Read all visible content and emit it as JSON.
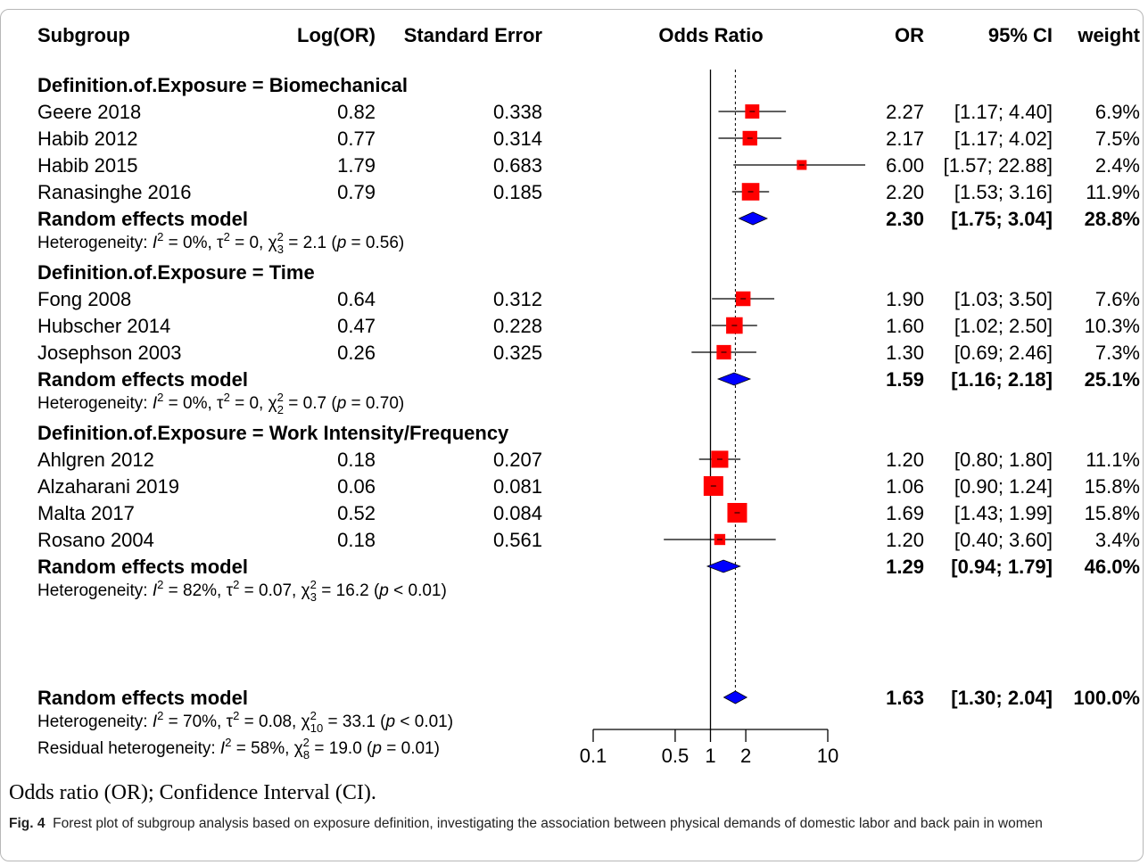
{
  "chart_data": {
    "type": "forest",
    "headers": {
      "subgroup": "Subgroup",
      "logor": "Log(OR)",
      "se": "Standard Error",
      "plot": "Odds Ratio",
      "or": "OR",
      "ci": "95% CI",
      "weight": "weight"
    },
    "axis": {
      "scale": "log",
      "ticks": [
        "0.1",
        "0.5",
        "1",
        "2",
        "10"
      ],
      "tick_values": [
        0.1,
        0.5,
        1,
        2,
        10
      ],
      "xlim": [
        0.1,
        10
      ],
      "null_value": 1,
      "overall_line": 1.63
    },
    "groups": [
      {
        "heading": "Definition.of.Exposure = Biomechanical",
        "studies": [
          {
            "name": "Geere 2018",
            "logor": "0.82",
            "se": "0.338",
            "or": 2.27,
            "lo": 1.17,
            "hi": 4.4,
            "or_text": "2.27",
            "ci_text": "[1.17;  4.40]",
            "weight_text": "6.9%",
            "weight": 6.9
          },
          {
            "name": "Habib 2012",
            "logor": "0.77",
            "se": "0.314",
            "or": 2.17,
            "lo": 1.17,
            "hi": 4.02,
            "or_text": "2.17",
            "ci_text": "[1.17;  4.02]",
            "weight_text": "7.5%",
            "weight": 7.5
          },
          {
            "name": "Habib 2015",
            "logor": "1.79",
            "se": "0.683",
            "or": 6.0,
            "lo": 1.57,
            "hi": 22.88,
            "or_text": "6.00",
            "ci_text": "[1.57; 22.88]",
            "weight_text": "2.4%",
            "weight": 2.4
          },
          {
            "name": "Ranasinghe 2016",
            "logor": "0.79",
            "se": "0.185",
            "or": 2.2,
            "lo": 1.53,
            "hi": 3.16,
            "or_text": "2.20",
            "ci_text": "[1.53;  3.16]",
            "weight_text": "11.9%",
            "weight": 11.9
          }
        ],
        "model": {
          "label": "Random effects model",
          "or": 2.3,
          "lo": 1.75,
          "hi": 3.04,
          "or_text": "2.30",
          "ci_text": "[1.75;  3.04]",
          "weight_text": "28.8%"
        },
        "heterogeneity": {
          "I2": "0%",
          "tau2": "0",
          "df": "3",
          "chi2": "2.1",
          "p": "= 0.56"
        }
      },
      {
        "heading": "Definition.of.Exposure = Time",
        "studies": [
          {
            "name": "Fong 2008",
            "logor": "0.64",
            "se": "0.312",
            "or": 1.9,
            "lo": 1.03,
            "hi": 3.5,
            "or_text": "1.90",
            "ci_text": "[1.03;  3.50]",
            "weight_text": "7.6%",
            "weight": 7.6
          },
          {
            "name": "Hubscher 2014",
            "logor": "0.47",
            "se": "0.228",
            "or": 1.6,
            "lo": 1.02,
            "hi": 2.5,
            "or_text": "1.60",
            "ci_text": "[1.02;  2.50]",
            "weight_text": "10.3%",
            "weight": 10.3
          },
          {
            "name": "Josephson 2003",
            "logor": "0.26",
            "se": "0.325",
            "or": 1.3,
            "lo": 0.69,
            "hi": 2.46,
            "or_text": "1.30",
            "ci_text": "[0.69;  2.46]",
            "weight_text": "7.3%",
            "weight": 7.3
          }
        ],
        "model": {
          "label": "Random effects model",
          "or": 1.59,
          "lo": 1.16,
          "hi": 2.18,
          "or_text": "1.59",
          "ci_text": "[1.16;  2.18]",
          "weight_text": "25.1%"
        },
        "heterogeneity": {
          "I2": "0%",
          "tau2": "0",
          "df": "2",
          "chi2": "0.7",
          "p": "= 0.70"
        }
      },
      {
        "heading": "Definition.of.Exposure = Work Intensity/Frequency",
        "studies": [
          {
            "name": "Ahlgren 2012",
            "logor": "0.18",
            "se": "0.207",
            "or": 1.2,
            "lo": 0.8,
            "hi": 1.8,
            "or_text": "1.20",
            "ci_text": "[0.80;  1.80]",
            "weight_text": "11.1%",
            "weight": 11.1
          },
          {
            "name": "Alzaharani 2019",
            "logor": "0.06",
            "se": "0.081",
            "or": 1.06,
            "lo": 0.9,
            "hi": 1.24,
            "or_text": "1.06",
            "ci_text": "[0.90;  1.24]",
            "weight_text": "15.8%",
            "weight": 15.8
          },
          {
            "name": "Malta 2017",
            "logor": "0.52",
            "se": "0.084",
            "or": 1.69,
            "lo": 1.43,
            "hi": 1.99,
            "or_text": "1.69",
            "ci_text": "[1.43;  1.99]",
            "weight_text": "15.8%",
            "weight": 15.8
          },
          {
            "name": "Rosano  2004",
            "logor": "0.18",
            "se": "0.561",
            "or": 1.2,
            "lo": 0.4,
            "hi": 3.6,
            "or_text": "1.20",
            "ci_text": "[0.40;  3.60]",
            "weight_text": "3.4%",
            "weight": 3.4
          }
        ],
        "model": {
          "label": "Random effects model",
          "or": 1.29,
          "lo": 0.94,
          "hi": 1.79,
          "or_text": "1.29",
          "ci_text": "[0.94;  1.79]",
          "weight_text": "46.0%"
        },
        "heterogeneity": {
          "I2": "82%",
          "tau2": "0.07",
          "df": "3",
          "chi2": "16.2",
          "p": "< 0.01"
        }
      }
    ],
    "overall": {
      "label": "Random effects model",
      "or": 1.63,
      "lo": 1.3,
      "hi": 2.04,
      "or_text": "1.63",
      "ci_text": "[1.30;  2.04]",
      "weight_text": "100.0%",
      "heterogeneity": {
        "I2": "70%",
        "tau2": "0.08",
        "df": "10",
        "chi2": "33.1",
        "p": "< 0.01"
      },
      "residual": {
        "prefix": "Residual heterogeneity: ",
        "I2": "58%",
        "df": "8",
        "chi2": "19.0",
        "p": "= 0.01"
      }
    },
    "colors": {
      "box": "#ff0000",
      "diamond": "#0000ff",
      "line": "#000000"
    }
  },
  "labels": {
    "heterogeneity_prefix": "Heterogeneity: "
  },
  "caption": {
    "note": "Odds ratio (OR); Confidence Interval (CI).",
    "fig_label": "Fig. 4",
    "fig_text": "Forest plot of subgroup analysis based on exposure definition, investigating the association between physical demands of domestic labor and back pain in women"
  }
}
